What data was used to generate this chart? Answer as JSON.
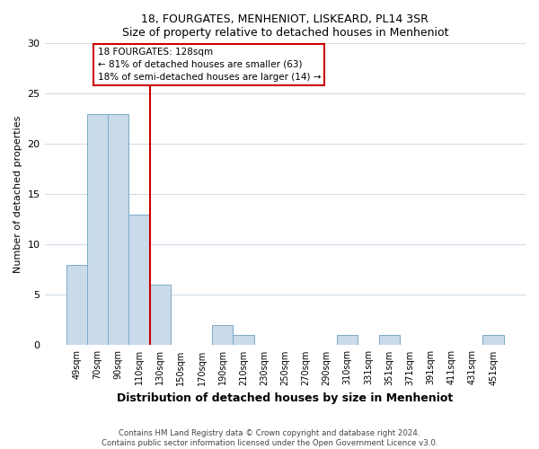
{
  "title1": "18, FOURGATES, MENHENIOT, LISKEARD, PL14 3SR",
  "title2": "Size of property relative to detached houses in Menheniot",
  "xlabel": "Distribution of detached houses by size in Menheniot",
  "ylabel": "Number of detached properties",
  "bar_labels": [
    "49sqm",
    "70sqm",
    "90sqm",
    "110sqm",
    "130sqm",
    "150sqm",
    "170sqm",
    "190sqm",
    "210sqm",
    "230sqm",
    "250sqm",
    "270sqm",
    "290sqm",
    "310sqm",
    "331sqm",
    "351sqm",
    "371sqm",
    "391sqm",
    "411sqm",
    "431sqm",
    "451sqm"
  ],
  "bar_values": [
    8,
    23,
    23,
    13,
    6,
    0,
    0,
    2,
    1,
    0,
    0,
    0,
    0,
    1,
    0,
    1,
    0,
    0,
    0,
    0,
    1
  ],
  "bar_color": "#c9daea",
  "bar_edge_color": "#7baac8",
  "vline_color": "#cc0000",
  "annotation_line1": "18 FOURGATES: 128sqm",
  "annotation_line2": "← 81% of detached houses are smaller (63)",
  "annotation_line3": "18% of semi-detached houses are larger (14) →",
  "ylim": [
    0,
    30
  ],
  "grid_color": "#d0dce8",
  "footer_text": "Contains HM Land Registry data © Crown copyright and database right 2024.\nContains public sector information licensed under the Open Government Licence v3.0.",
  "fig_bg": "#ffffff",
  "ax_bg": "#ffffff"
}
